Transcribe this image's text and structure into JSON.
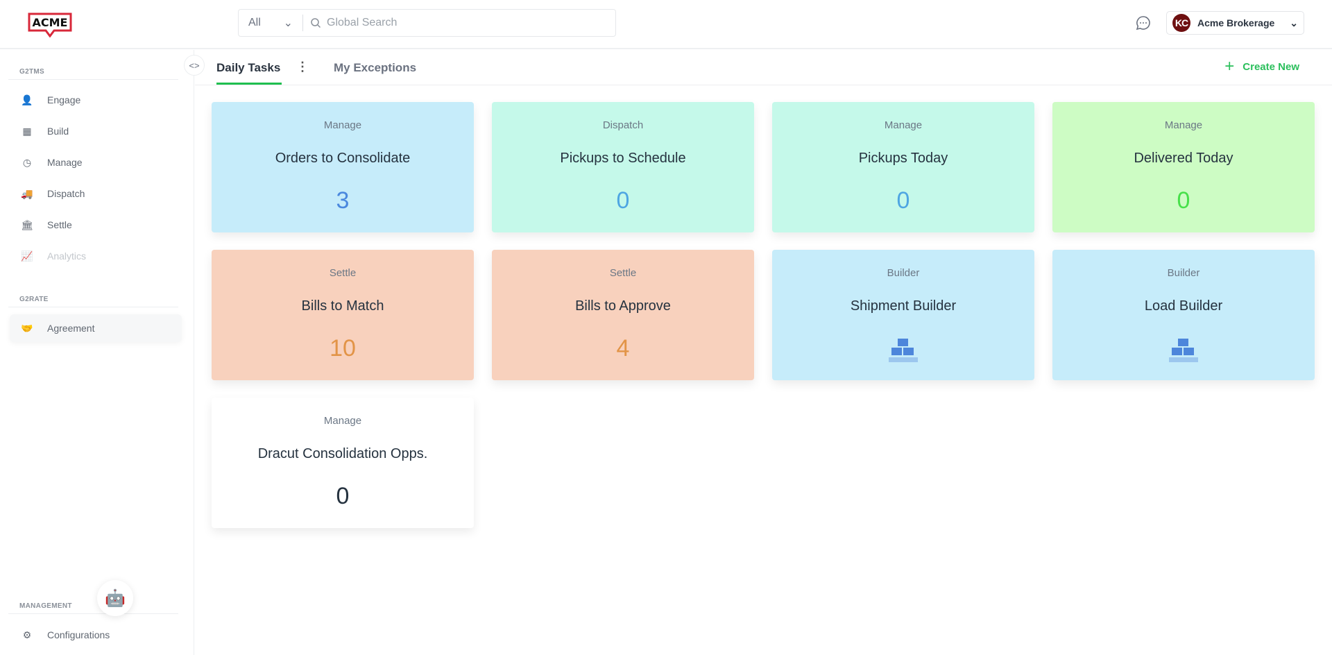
{
  "header": {
    "logo_text": "ACME",
    "search_scope": "All",
    "search_placeholder": "Global Search",
    "account_initials": "KC",
    "account_name": "Acme Brokerage"
  },
  "sidebar": {
    "sections": [
      {
        "label": "G2TMS"
      },
      {
        "label": "G2RATE"
      },
      {
        "label": "MANAGEMENT"
      }
    ],
    "items": [
      {
        "label": "Engage",
        "icon": "contacts-icon"
      },
      {
        "label": "Build",
        "icon": "blocks-icon"
      },
      {
        "label": "Manage",
        "icon": "clock-pin-icon"
      },
      {
        "label": "Dispatch",
        "icon": "truck-pin-icon"
      },
      {
        "label": "Settle",
        "icon": "bank-icon"
      },
      {
        "label": "Analytics",
        "icon": "chart-icon",
        "disabled": true
      },
      {
        "label": "Agreement",
        "icon": "handshake-icon"
      },
      {
        "label": "Configurations",
        "icon": "gear-icon"
      }
    ]
  },
  "tabs": [
    {
      "label": "Daily Tasks",
      "active": true
    },
    {
      "label": "My Exceptions",
      "active": false
    }
  ],
  "create_new_label": "Create New",
  "cards": [
    {
      "category": "Manage",
      "title": "Orders to Consolidate",
      "value": "3",
      "bg": "#c6ecfa",
      "color": "#4a88de"
    },
    {
      "category": "Dispatch",
      "title": "Pickups to Schedule",
      "value": "0",
      "bg": "#c5f9ea",
      "color": "#4ea6e2"
    },
    {
      "category": "Manage",
      "title": "Pickups Today",
      "value": "0",
      "bg": "#c5f9ea",
      "color": "#4ea6e2"
    },
    {
      "category": "Manage",
      "title": "Delivered Today",
      "value": "0",
      "bg": "#cdfcc4",
      "color": "#47e04a"
    },
    {
      "category": "Settle",
      "title": "Bills to Match",
      "value": "10",
      "bg": "#f8d1bd",
      "color": "#e29447"
    },
    {
      "category": "Settle",
      "title": "Bills to Approve",
      "value": "4",
      "bg": "#f8d1bd",
      "color": "#e29447"
    },
    {
      "category": "Builder",
      "title": "Shipment Builder",
      "icon": "blocks-icon",
      "bg": "#c6ecfa"
    },
    {
      "category": "Builder",
      "title": "Load Builder",
      "icon": "blocks-icon",
      "bg": "#c6ecfa"
    },
    {
      "category": "Manage",
      "title": "Dracut Consolidation Opps.",
      "value": "0",
      "bg": "#ffffff",
      "color": "#25323f"
    }
  ]
}
